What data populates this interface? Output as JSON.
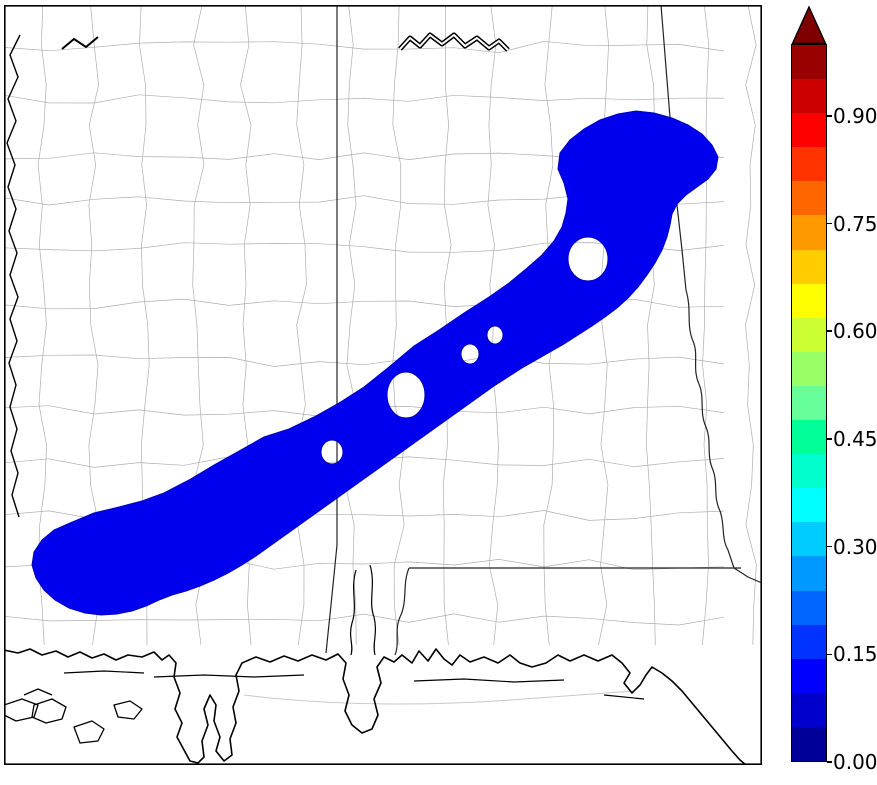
{
  "figure": {
    "background": "#ffffff"
  },
  "map": {
    "background": "#ffffff",
    "frame_color": "#000000",
    "county_line_color": "#aeaeae",
    "state_border_color": "#222222",
    "coastline_color": "#000000",
    "water_detail_color": "#c9c9c9",
    "river_fill_color": "#ffffff",
    "swath_fill": "#0000ee",
    "swath_edge": "#0000b8"
  },
  "colorbar": {
    "orientation": "vertical",
    "range_min": 0.0,
    "range_max": 1.0,
    "tick_labels": [
      "0.90",
      "0.75",
      "0.60",
      "0.45",
      "0.30",
      "0.15",
      "0.00"
    ],
    "tick_values": [
      0.9,
      0.75,
      0.6,
      0.45,
      0.3,
      0.15,
      0.0
    ],
    "over_arrow_color": "#7f0000",
    "border_color": "#000000",
    "segment_colors_bottom_to_top": [
      "#000099",
      "#0000cc",
      "#0000ff",
      "#0033ff",
      "#0066ff",
      "#0099ff",
      "#00ccff",
      "#00ffff",
      "#00ffcc",
      "#00ff99",
      "#66ff99",
      "#99ff66",
      "#ccff33",
      "#ffff00",
      "#ffcc00",
      "#ff9900",
      "#ff6600",
      "#ff3300",
      "#ff0000",
      "#cc0000",
      "#990000"
    ]
  },
  "chart_data": {
    "type": "heatmap",
    "title": "",
    "xlabel": "",
    "ylabel": "",
    "legend": "vertical colorbar, right side, extended (arrow) at top",
    "colorbar_ticks": [
      0.0,
      0.15,
      0.3,
      0.45,
      0.6,
      0.75,
      0.9
    ],
    "colorbar_range": [
      0.0,
      1.0
    ],
    "visible_field": "single contiguous filled swath plotted in the lowest blue color band (approx. 0.05-0.15), running diagonally from southwest Mississippi to northeast Alabama, with several interior holes",
    "basemap": "county and state boundaries of Mississippi and Alabama with Gulf of Mexico coastline"
  }
}
